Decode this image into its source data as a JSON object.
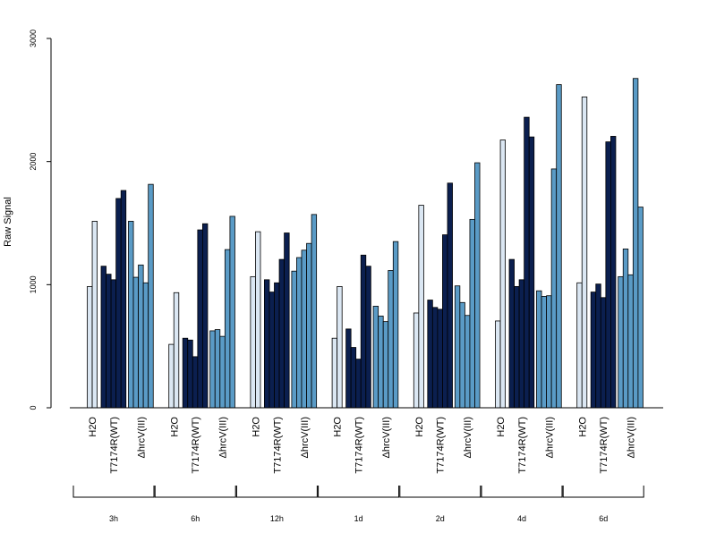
{
  "chart_data": {
    "type": "bar",
    "ylabel": "Raw Signal",
    "ylim": [
      0,
      3000
    ],
    "yticks": [
      0,
      1000,
      2000,
      3000
    ],
    "group_labels": [
      "H2O",
      "T7174R(WT)",
      "ΔhrcV(III)"
    ],
    "group_colors": [
      "#dbe7f3",
      "#0b1f4f",
      "#5a9bc6"
    ],
    "timepoints": [
      "3h",
      "6h",
      "12h",
      "1d",
      "2d",
      "4d",
      "6d"
    ],
    "values": [
      [
        [
          985,
          1515
        ],
        [
          1150,
          1085,
          1040,
          1700,
          1765
        ],
        [
          1515,
          1060,
          1160,
          1015,
          1815
        ]
      ],
      [
        [
          515,
          935
        ],
        [
          565,
          550,
          415,
          1445,
          1495
        ],
        [
          625,
          635,
          580,
          1285,
          1555
        ]
      ],
      [
        [
          1065,
          1430
        ],
        [
          1040,
          940,
          1015,
          1205,
          1420
        ],
        [
          1110,
          1220,
          1280,
          1335,
          1570
        ]
      ],
      [
        [
          565,
          985
        ],
        [
          640,
          490,
          395,
          1240,
          1150
        ],
        [
          825,
          745,
          700,
          1115,
          1350
        ]
      ],
      [
        [
          770,
          1645
        ],
        [
          875,
          815,
          800,
          1405,
          1825
        ],
        [
          990,
          855,
          750,
          1530,
          1990
        ]
      ],
      [
        [
          705,
          2175
        ],
        [
          1205,
          985,
          1040,
          2360,
          2200
        ],
        [
          950,
          905,
          910,
          1940,
          2625
        ]
      ],
      [
        [
          1015,
          2525
        ],
        [
          940,
          1005,
          895,
          2160,
          2205
        ],
        [
          1065,
          1290,
          1080,
          2675,
          1630
        ]
      ]
    ]
  }
}
